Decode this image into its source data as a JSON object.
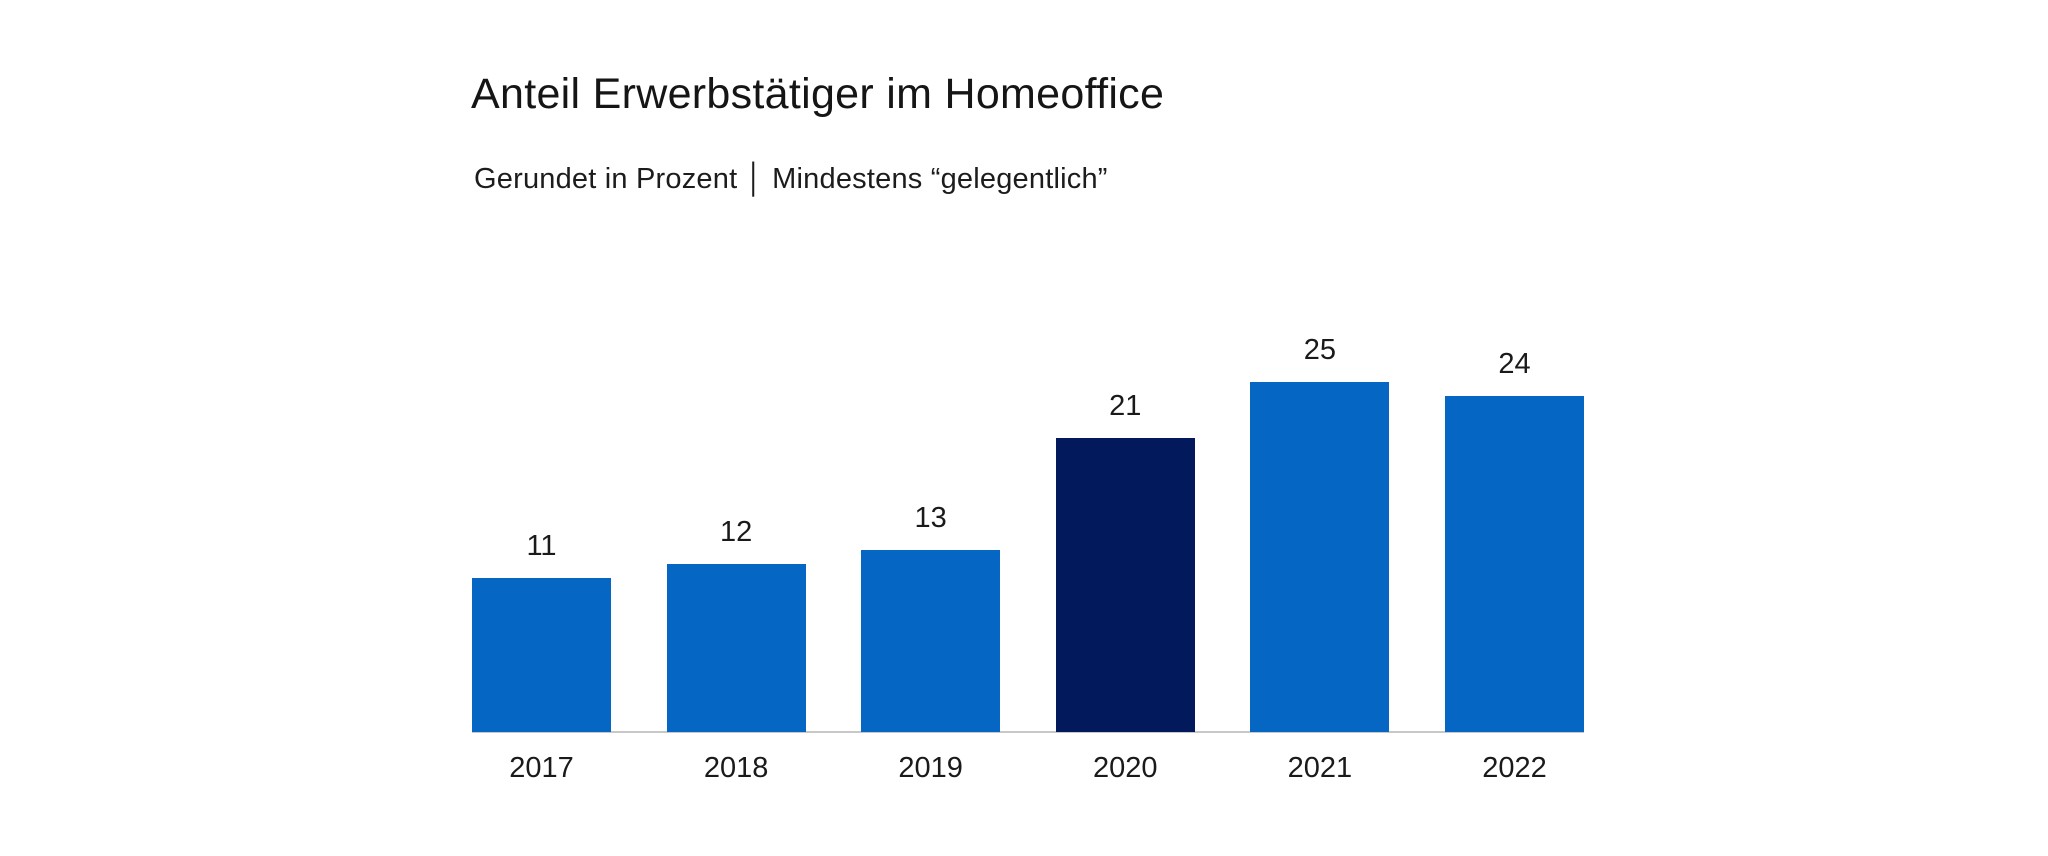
{
  "chart_data": {
    "type": "bar",
    "title": "Anteil Erwerbstätiger im Homeoffice",
    "subtitle": "Gerundet in Prozent │ Mindestens “gelegentlich”",
    "categories": [
      "2017",
      "2018",
      "2019",
      "2020",
      "2021",
      "2022"
    ],
    "values": [
      11,
      12,
      13,
      21,
      25,
      24
    ],
    "data_labels_shown": true,
    "xlabel": "",
    "ylabel": "",
    "ylim": [
      0,
      25
    ],
    "grid": false,
    "legend_position": "none",
    "bar_color": "#0567c3",
    "highlight_category": "2020",
    "highlight_color": "#021a5c",
    "axis_line_color": "#c8c8c8",
    "text_color": "#1a1a1a",
    "background_color": "#ffffff"
  }
}
